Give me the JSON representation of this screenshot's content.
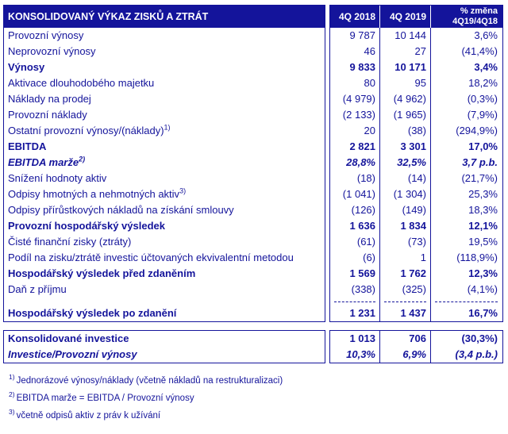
{
  "theme": {
    "navy": "#14149b",
    "header_bg": "#14149b",
    "header_text": "#ffffff"
  },
  "header": {
    "title": "KONSOLIDOVANÝ VÝKAZ ZISKŮ A ZTRÁT",
    "col_2018": "4Q 2018",
    "col_2019": "4Q 2019",
    "col_change_line1": "% změna",
    "col_change_line2": "4Q19/4Q18"
  },
  "income": {
    "rows": [
      {
        "label": "Provozní výnosy",
        "v2018": "9 787",
        "v2019": "10 144",
        "change": "3,6%"
      },
      {
        "label": "Neprovozní výnosy",
        "v2018": "46",
        "v2019": "27",
        "change": "(41,4%)"
      },
      {
        "label": "Výnosy",
        "v2018": "9 833",
        "v2019": "10 171",
        "change": "3,4%"
      },
      {
        "label": "Aktivace dlouhodobého majetku",
        "v2018": "80",
        "v2019": "95",
        "change": "18,2%"
      },
      {
        "label": "Náklady na prodej",
        "v2018": "(4 979)",
        "v2019": "(4 962)",
        "change": "(0,3%)"
      },
      {
        "label": "Provozní náklady",
        "v2018": "(2 133)",
        "v2019": "(1 965)",
        "change": "(7,9%)"
      },
      {
        "label": "Ostatní provozní výnosy/(náklady)",
        "sup": "1)",
        "v2018": "20",
        "v2019": "(38)",
        "change": "(294,9%)"
      },
      {
        "label": "EBITDA",
        "v2018": "2 821",
        "v2019": "3 301",
        "change": "17,0%"
      },
      {
        "label": "EBITDA marže",
        "sup": "2)",
        "v2018": "28,8%",
        "v2019": "32,5%",
        "change": "3,7 p.b."
      },
      {
        "label": "Snížení hodnoty aktiv",
        "v2018": "(18)",
        "v2019": "(14)",
        "change": "(21,7%)"
      },
      {
        "label": "Odpisy hmotných a nehmotných aktiv",
        "sup": "3)",
        "v2018": "(1 041)",
        "v2019": "(1 304)",
        "change": "25,3%"
      },
      {
        "label": "Odpisy přírůstkových nákladů na získání smlouvy",
        "v2018": "(126)",
        "v2019": "(149)",
        "change": "18,3%"
      },
      {
        "label": "Provozní hospodářský výsledek",
        "v2018": "1 636",
        "v2019": "1 834",
        "change": "12,1%"
      },
      {
        "label": "Čisté finanční zisky (ztráty)",
        "v2018": "(61)",
        "v2019": "(73)",
        "change": "19,5%"
      },
      {
        "label": "Podíl na zisku/ztrátě investic účtovaných ekvivalentní metodou",
        "v2018": "(6)",
        "v2019": "1",
        "change": "(118,9%)"
      },
      {
        "label": "Hospodářský výsledek před zdaněním",
        "v2018": "1 569",
        "v2019": "1 762",
        "change": "12,3%"
      },
      {
        "label": "Daň z příjmu",
        "v2018": "(338)",
        "v2019": "(325)",
        "change": "(4,1%)"
      },
      {
        "label": "Hospodářský výsledek po zdanění",
        "v2018": "1 231",
        "v2019": "1 437",
        "change": "16,7%"
      }
    ]
  },
  "investments": {
    "rows": [
      {
        "label": "Konsolidované investice",
        "v2018": "1 013",
        "v2019": "706",
        "change": "(30,3%)"
      },
      {
        "label": "Investice/Provozní výnosy",
        "v2018": "10,3%",
        "v2019": "6,9%",
        "change": "(3,4 p.b.)"
      }
    ]
  },
  "footnotes": [
    {
      "sup": "1)",
      "text": "Jednorázové výnosy/náklady (včetně nákladů na restrukturalizaci)"
    },
    {
      "sup": "2)",
      "text": "EBITDA marže = EBITDA / Provozní výnosy"
    },
    {
      "sup": "3)",
      "text": "včetně odpisů aktiv z práv k užívání"
    }
  ]
}
